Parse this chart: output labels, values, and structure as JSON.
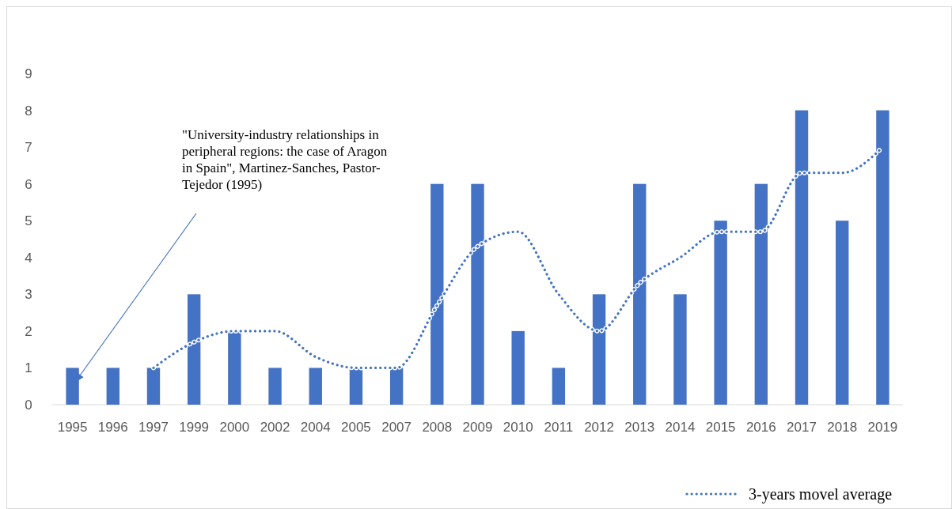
{
  "chart_data": {
    "type": "bar",
    "categories": [
      "1995",
      "1996",
      "1997",
      "1999",
      "2000",
      "2002",
      "2004",
      "2005",
      "2007",
      "2008",
      "2009",
      "2010",
      "2011",
      "2012",
      "2013",
      "2014",
      "2015",
      "2016",
      "2017",
      "2018",
      "2019"
    ],
    "series": [
      {
        "color": "#4472c4",
        "values": [
          1,
          1,
          1,
          3,
          2,
          1,
          1,
          1,
          1,
          6,
          6,
          2,
          1,
          3,
          6,
          3,
          5,
          6,
          8,
          5,
          8
        ]
      },
      {
        "type": "line",
        "name": "3-years movel average",
        "color": "#4472c4",
        "line_style": "dotted",
        "values": [
          null,
          null,
          1,
          1.7,
          2,
          2,
          1.3,
          1,
          1,
          2.7,
          4.3,
          4.7,
          3,
          2,
          3.3,
          4,
          4.7,
          4.7,
          6.3,
          6.3,
          7
        ]
      }
    ],
    "ylim": [
      0,
      9
    ],
    "yticks": [
      0,
      1,
      2,
      3,
      4,
      5,
      6,
      7,
      8,
      9
    ],
    "grid": false,
    "legend": "bottom",
    "annotations": [
      "\"University-industry relationships in peripheral regions: the case of Aragon in Spain\", Martinez-Sanches, Pastor-Tejedor (1995)"
    ]
  }
}
